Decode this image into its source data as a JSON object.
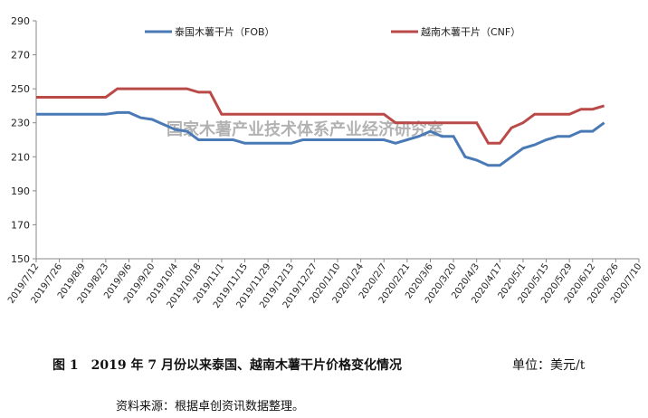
{
  "chart_data": {
    "type": "line",
    "categories": [
      "2019/7/12",
      null,
      "2019/7/26",
      null,
      "2019/8/9",
      null,
      "2019/8/23",
      null,
      "2019/9/6",
      null,
      "2019/9/20",
      null,
      "2019/10/4",
      null,
      "2019/10/18",
      null,
      "2019/11/1",
      null,
      "2019/11/15",
      null,
      "2019/11/29",
      null,
      "2019/12/13",
      null,
      "2019/12/27",
      null,
      "2020/1/10",
      null,
      "2020/1/24",
      null,
      "2020/2/7",
      null,
      "2020/2/21",
      null,
      "2020/3/6",
      null,
      "2020/3/20",
      null,
      "2020/4/3",
      null,
      "2020/4/17",
      null,
      "2020/5/1",
      null,
      "2020/5/15",
      null,
      "2020/5/29",
      null,
      "2020/6/12",
      null,
      "2020/6/26",
      null,
      "2020/7/10"
    ],
    "series": [
      {
        "name": "泰国木薯干片（FOB）",
        "color": "#4a7ab5",
        "values": [
          235,
          235,
          235,
          235,
          235,
          235,
          235,
          236,
          236,
          233,
          232,
          229,
          226,
          225,
          220,
          220,
          220,
          220,
          218,
          218,
          218,
          218,
          218,
          220,
          220,
          220,
          220,
          220,
          220,
          220,
          220,
          218,
          220,
          222,
          225,
          222,
          222,
          210,
          208,
          205,
          205,
          210,
          215,
          217,
          220,
          222,
          222,
          225,
          225,
          230,
          null,
          null,
          null
        ]
      },
      {
        "name": "越南木薯干片（CNF）",
        "color": "#b94a48",
        "values": [
          245,
          245,
          245,
          245,
          245,
          245,
          245,
          250,
          250,
          250,
          250,
          250,
          250,
          250,
          248,
          248,
          235,
          235,
          235,
          235,
          235,
          235,
          235,
          235,
          235,
          235,
          235,
          235,
          235,
          235,
          235,
          230,
          230,
          230,
          230,
          230,
          230,
          230,
          230,
          218,
          218,
          227,
          230,
          235,
          235,
          235,
          235,
          238,
          238,
          240,
          null,
          null,
          null
        ]
      }
    ],
    "ylim": [
      150,
      290
    ],
    "yticks": [
      150,
      170,
      190,
      210,
      230,
      250,
      270,
      290
    ],
    "watermark": "国家木薯产业技术体系产业经济研究室",
    "caption": "图 1　2019 年 7 月份以来泰国、越南木薯干片价格变化情况",
    "unit": "单位：美元/t",
    "source": "资料来源：根据卓创资讯数据整理。",
    "legend": "top"
  }
}
